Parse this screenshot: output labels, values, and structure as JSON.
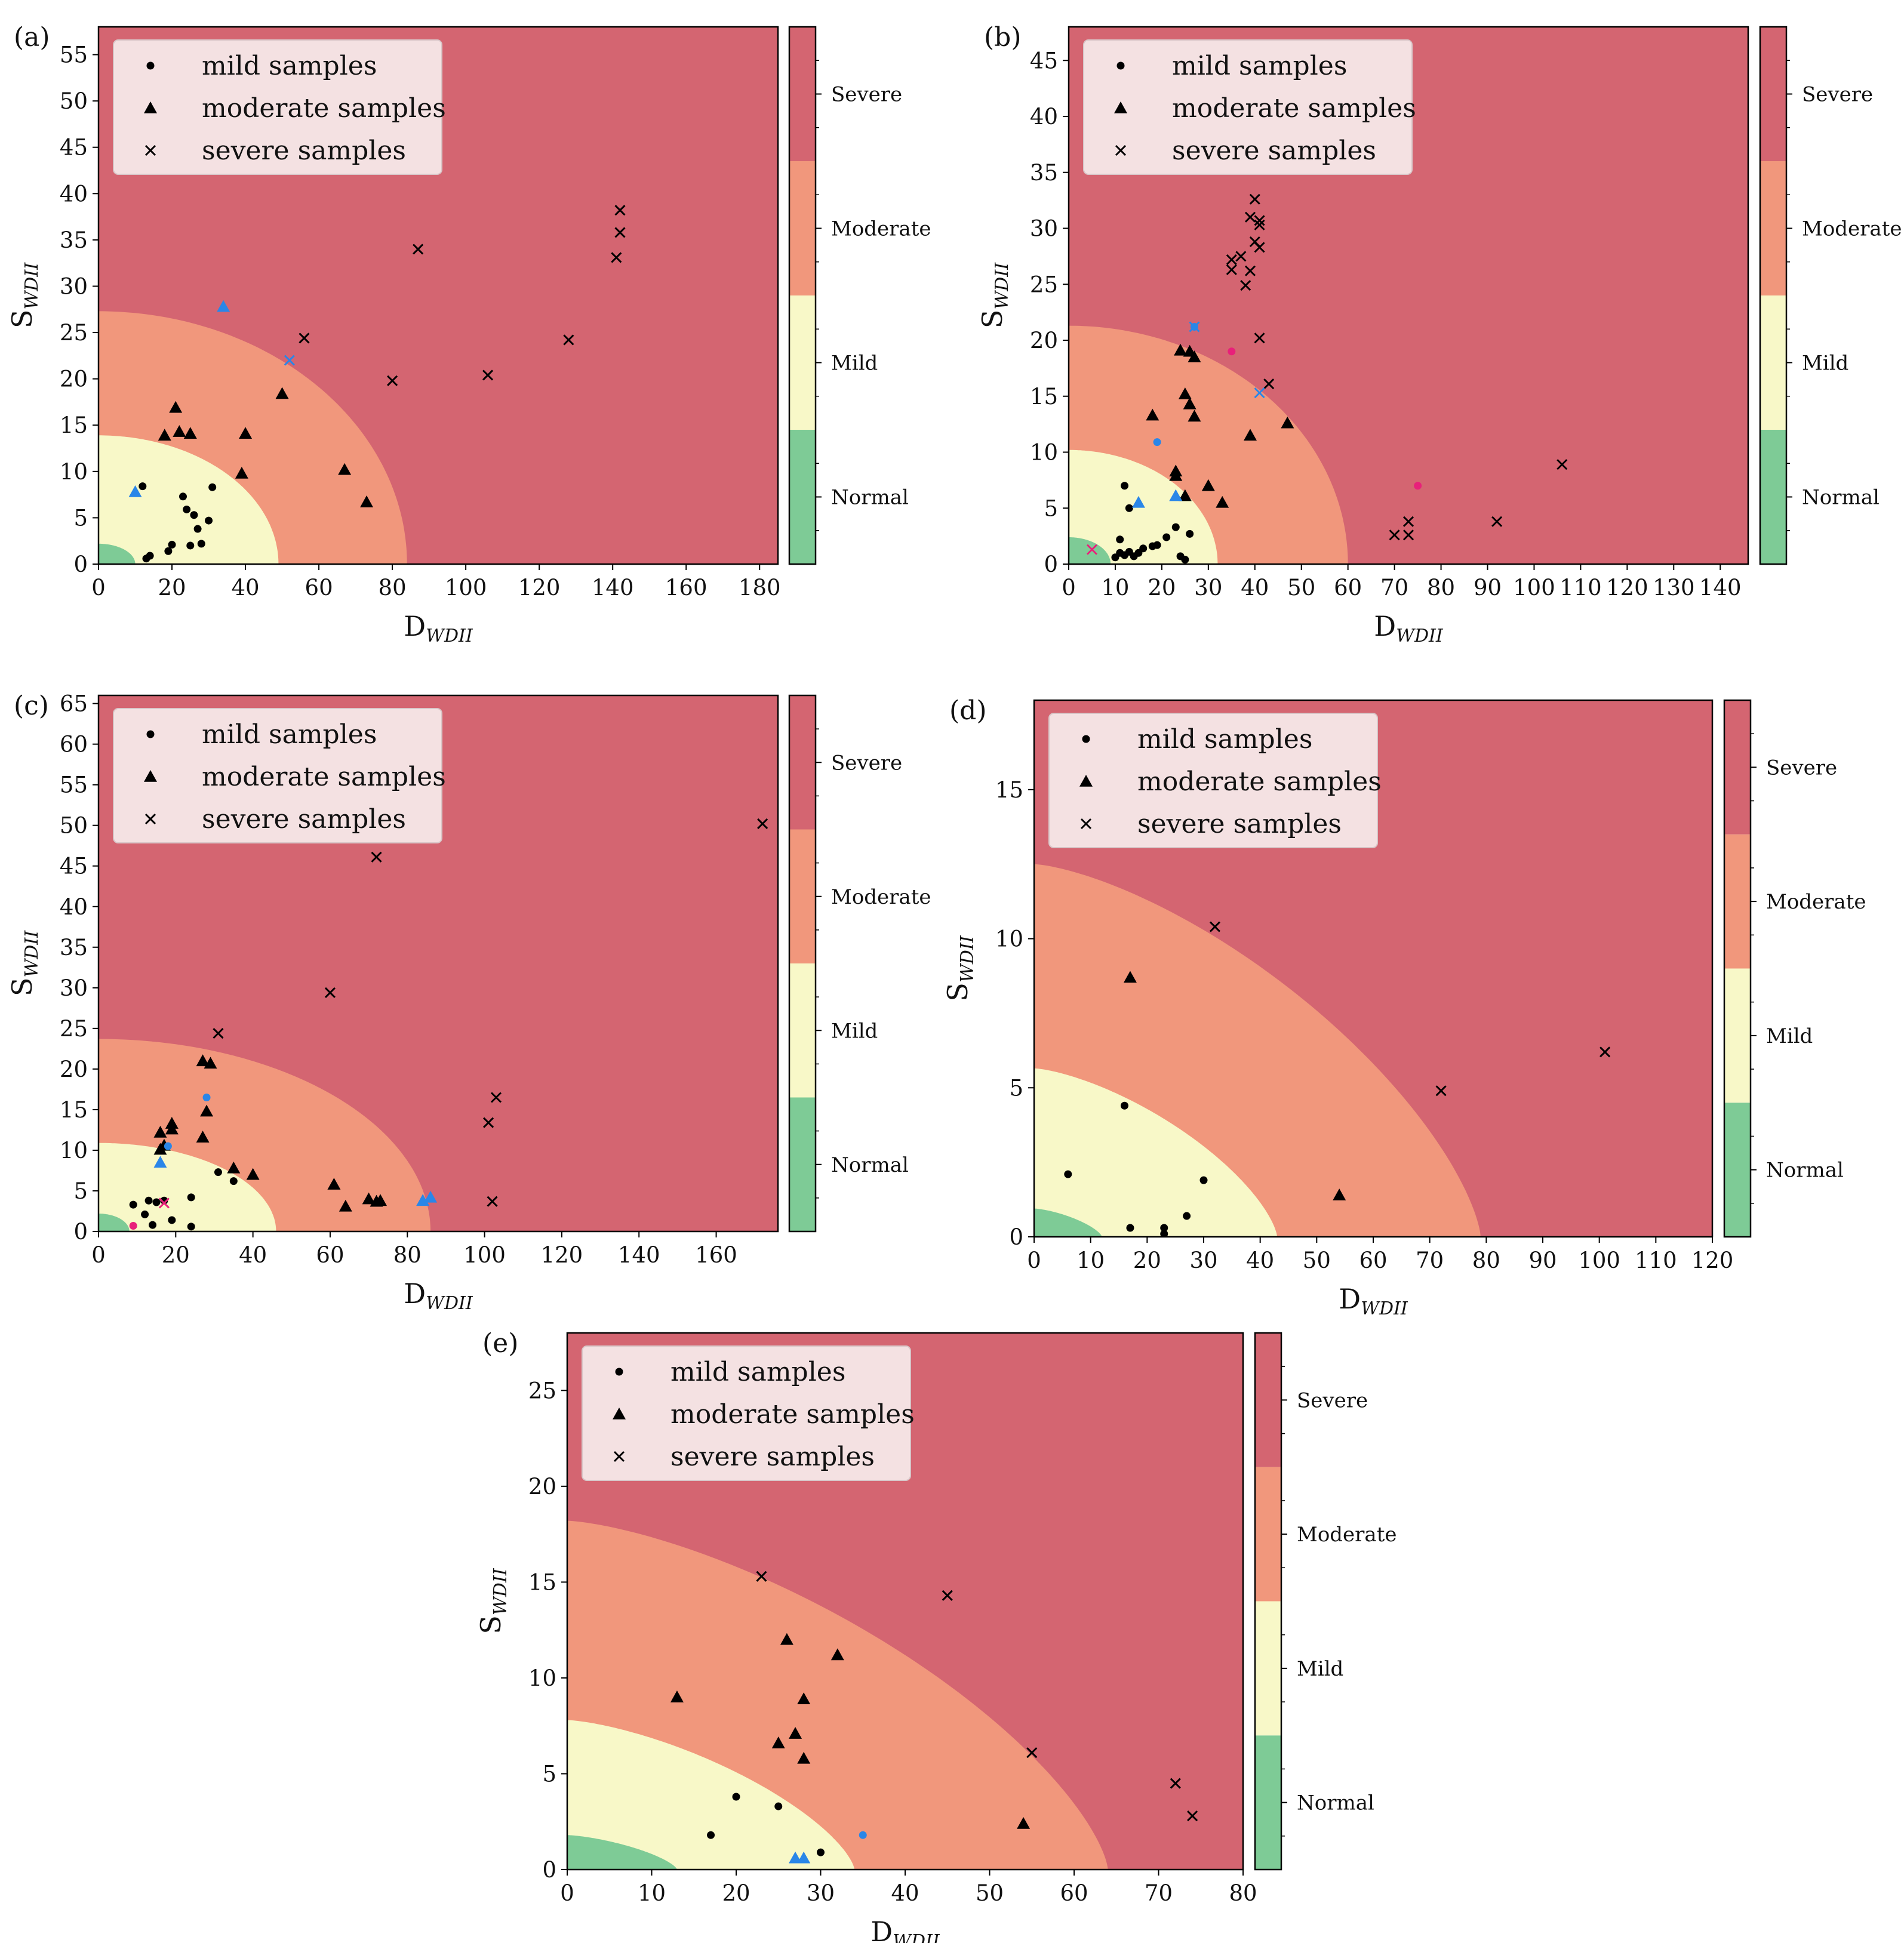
{
  "legend": {
    "mild": "mild samples",
    "moderate": "moderate samples",
    "severe": "severe samples"
  },
  "colorbar_labels": [
    "Normal",
    "Mild",
    "Moderate",
    "Severe"
  ],
  "colors": {
    "normal": "#7ecb96",
    "mild": "#f8f8c8",
    "moderate": "#f1977c",
    "severe": "#d46571",
    "marker": "#000000",
    "highlight_blue": "#2a86e8",
    "highlight_pink": "#e8207a"
  },
  "chart_data": [
    {
      "panel": "(a)",
      "type": "scatter",
      "xlabel": "D",
      "xlabel_sub": "WDII",
      "ylabel": "S",
      "ylabel_sub": "WDII",
      "xlim": [
        0,
        185
      ],
      "ylim": [
        0,
        58
      ],
      "xticks": [
        0,
        20,
        40,
        60,
        80,
        100,
        120,
        140,
        160,
        180
      ],
      "yticks": [
        0,
        5,
        10,
        15,
        20,
        25,
        30,
        35,
        40,
        45,
        50,
        55
      ],
      "regions": {
        "normal_r": [
          10,
          2.2
        ],
        "mild_r": [
          49,
          13.9
        ],
        "moderate_r": [
          84,
          27.3
        ],
        "shape": "ellipse"
      },
      "mild": [
        [
          12,
          8.4
        ],
        [
          13,
          0.6
        ],
        [
          14,
          0.9
        ],
        [
          19,
          1.4
        ],
        [
          20,
          2.1
        ],
        [
          23,
          7.3
        ],
        [
          24,
          5.9
        ],
        [
          25,
          2.0
        ],
        [
          26,
          5.3
        ],
        [
          27,
          3.8
        ],
        [
          28,
          2.2
        ],
        [
          30,
          4.7
        ],
        [
          31,
          8.3
        ]
      ],
      "moderate": [
        [
          18,
          13.9
        ],
        [
          21,
          16.9
        ],
        [
          22,
          14.3
        ],
        [
          25,
          14.1
        ],
        [
          39,
          9.8
        ],
        [
          40,
          14.1
        ],
        [
          50,
          18.4
        ],
        [
          67,
          10.2
        ],
        [
          73,
          6.7
        ]
      ],
      "severe": [
        [
          56,
          24.4
        ],
        [
          80,
          19.8
        ],
        [
          87,
          34.0
        ],
        [
          106,
          20.4
        ],
        [
          128,
          24.2
        ],
        [
          141,
          33.1
        ],
        [
          142,
          35.8
        ],
        [
          142,
          38.2
        ]
      ],
      "highlight": [
        {
          "marker": "triangle",
          "color": "blue",
          "x": 10,
          "y": 7.8
        },
        {
          "marker": "triangle",
          "color": "blue",
          "x": 34,
          "y": 27.8
        },
        {
          "marker": "x",
          "color": "blue",
          "x": 52,
          "y": 22.0
        }
      ]
    },
    {
      "panel": "(b)",
      "type": "scatter",
      "xlabel": "D",
      "xlabel_sub": "WDII",
      "ylabel": "S",
      "ylabel_sub": "WDII",
      "xlim": [
        0,
        146
      ],
      "ylim": [
        0,
        48
      ],
      "xticks": [
        0,
        10,
        20,
        30,
        40,
        50,
        60,
        70,
        80,
        90,
        100,
        110,
        120,
        130,
        140
      ],
      "yticks": [
        0,
        5,
        10,
        15,
        20,
        25,
        30,
        35,
        40,
        45
      ],
      "regions": {
        "normal_r": [
          9,
          2.4
        ],
        "mild_r": [
          32,
          10.2
        ],
        "moderate_r": [
          60,
          21.3
        ],
        "shape": "ellipse"
      },
      "mild": [
        [
          10,
          0.6
        ],
        [
          11,
          2.2
        ],
        [
          11,
          1.0
        ],
        [
          12,
          0.8
        ],
        [
          12,
          7.0
        ],
        [
          13,
          5.0
        ],
        [
          13,
          1.1
        ],
        [
          14,
          0.7
        ],
        [
          15,
          1.0
        ],
        [
          16,
          1.4
        ],
        [
          18,
          1.6
        ],
        [
          19,
          1.7
        ],
        [
          21,
          2.4
        ],
        [
          23,
          3.3
        ],
        [
          24,
          0.7
        ],
        [
          25,
          0.4
        ],
        [
          26,
          2.7
        ]
      ],
      "moderate": [
        [
          18,
          13.3
        ],
        [
          23,
          7.9
        ],
        [
          23,
          8.3
        ],
        [
          24,
          19.1
        ],
        [
          25,
          15.2
        ],
        [
          25,
          6.1
        ],
        [
          26,
          19.0
        ],
        [
          26,
          14.3
        ],
        [
          27,
          13.2
        ],
        [
          27,
          18.5
        ],
        [
          30,
          7.0
        ],
        [
          33,
          5.5
        ],
        [
          39,
          11.5
        ],
        [
          47,
          12.6
        ]
      ],
      "severe": [
        [
          35,
          27.2
        ],
        [
          35,
          26.3
        ],
        [
          37,
          27.5
        ],
        [
          38,
          24.9
        ],
        [
          39,
          31.0
        ],
        [
          39,
          26.2
        ],
        [
          40,
          32.6
        ],
        [
          40,
          28.8
        ],
        [
          41,
          28.3
        ],
        [
          41,
          30.7
        ],
        [
          41,
          30.3
        ],
        [
          41,
          20.2
        ],
        [
          43,
          16.1
        ],
        [
          70,
          2.6
        ],
        [
          73,
          3.8
        ],
        [
          73,
          2.6
        ],
        [
          92,
          3.8
        ],
        [
          106,
          8.9
        ]
      ],
      "highlight": [
        {
          "marker": "dot",
          "color": "blue",
          "x": 19,
          "y": 10.9
        },
        {
          "marker": "triangle",
          "color": "blue",
          "x": 15,
          "y": 5.5
        },
        {
          "marker": "triangle",
          "color": "blue",
          "x": 23,
          "y": 6.1
        },
        {
          "marker": "x",
          "color": "blue",
          "x": 27,
          "y": 21.2
        },
        {
          "marker": "dot",
          "color": "blue",
          "x": 27,
          "y": 21.2
        },
        {
          "marker": "x",
          "color": "blue",
          "x": 41,
          "y": 15.3
        },
        {
          "marker": "x",
          "color": "pink",
          "x": 5,
          "y": 1.3
        },
        {
          "marker": "dot",
          "color": "pink",
          "x": 35,
          "y": 19.0
        },
        {
          "marker": "dot",
          "color": "pink",
          "x": 75,
          "y": 7.0
        }
      ]
    },
    {
      "panel": "(c)",
      "type": "scatter",
      "xlabel": "D",
      "xlabel_sub": "WDII",
      "ylabel": "S",
      "ylabel_sub": "WDII",
      "xlim": [
        0,
        176
      ],
      "ylim": [
        0,
        66
      ],
      "xticks": [
        0,
        20,
        40,
        60,
        80,
        100,
        120,
        140,
        160
      ],
      "yticks": [
        0,
        5,
        10,
        15,
        20,
        25,
        30,
        35,
        40,
        45,
        50,
        55,
        60,
        65
      ],
      "regions": {
        "normal_r": [
          8,
          2.2
        ],
        "mild_r": [
          46,
          10.9
        ],
        "moderate_r": [
          86,
          23.7
        ],
        "shape": "ellipse"
      },
      "mild": [
        [
          9,
          3.3
        ],
        [
          12,
          2.1
        ],
        [
          13,
          3.8
        ],
        [
          14,
          0.8
        ],
        [
          15,
          3.6
        ],
        [
          17,
          3.8
        ],
        [
          19,
          1.4
        ],
        [
          24,
          4.2
        ],
        [
          24,
          0.6
        ],
        [
          31,
          7.3
        ],
        [
          35,
          6.2
        ]
      ],
      "moderate": [
        [
          16,
          10.1
        ],
        [
          16,
          12.2
        ],
        [
          17,
          10.6
        ],
        [
          19,
          12.6
        ],
        [
          19,
          13.3
        ],
        [
          27,
          11.6
        ],
        [
          27,
          21.0
        ],
        [
          28,
          14.8
        ],
        [
          29,
          20.7
        ],
        [
          35,
          7.8
        ],
        [
          40,
          7.0
        ],
        [
          61,
          5.8
        ],
        [
          64,
          3.1
        ],
        [
          70,
          4.0
        ],
        [
          72,
          3.7
        ],
        [
          73,
          3.8
        ]
      ],
      "severe": [
        [
          31,
          24.4
        ],
        [
          60,
          29.4
        ],
        [
          72,
          46.1
        ],
        [
          101,
          13.4
        ],
        [
          102,
          3.7
        ],
        [
          103,
          16.5
        ],
        [
          172,
          50.2
        ]
      ],
      "highlight": [
        {
          "marker": "triangle",
          "color": "blue",
          "x": 16,
          "y": 8.5
        },
        {
          "marker": "dot",
          "color": "blue",
          "x": 18,
          "y": 10.5
        },
        {
          "marker": "dot",
          "color": "blue",
          "x": 28,
          "y": 16.5
        },
        {
          "marker": "triangle",
          "color": "blue",
          "x": 84,
          "y": 3.8
        },
        {
          "marker": "triangle",
          "color": "blue",
          "x": 86,
          "y": 4.2
        },
        {
          "marker": "x",
          "color": "pink",
          "x": 17,
          "y": 3.5
        },
        {
          "marker": "dot",
          "color": "pink",
          "x": 9,
          "y": 0.7
        }
      ]
    },
    {
      "panel": "(d)",
      "type": "scatter",
      "xlabel": "D",
      "xlabel_sub": "WDII",
      "ylabel": "S",
      "ylabel_sub": "WDII",
      "xlim": [
        0,
        120
      ],
      "ylim": [
        0,
        18
      ],
      "xticks": [
        0,
        10,
        20,
        30,
        40,
        50,
        60,
        70,
        80,
        90,
        100,
        110,
        120
      ],
      "yticks": [
        0,
        5,
        10,
        15
      ],
      "regions": {
        "normal_r": [
          12,
          0.95
        ],
        "mild_r": [
          43,
          5.65
        ],
        "moderate_r": [
          79,
          12.5
        ],
        "shape": "superellipse"
      },
      "mild": [
        [
          6,
          2.1
        ],
        [
          16,
          4.4
        ],
        [
          17,
          0.3
        ],
        [
          23,
          0.3
        ],
        [
          23,
          0.1
        ],
        [
          27,
          0.7
        ],
        [
          30,
          1.9
        ]
      ],
      "moderate": [
        [
          17,
          8.7
        ],
        [
          54,
          1.4
        ]
      ],
      "severe": [
        [
          32,
          10.4
        ],
        [
          72,
          4.9
        ],
        [
          101,
          6.2
        ]
      ],
      "highlight": []
    },
    {
      "panel": "(e)",
      "type": "scatter",
      "xlabel": "D",
      "xlabel_sub": "WDII",
      "ylabel": "S",
      "ylabel_sub": "WDII",
      "xlim": [
        0,
        80
      ],
      "ylim": [
        0,
        28
      ],
      "xticks": [
        0,
        10,
        20,
        30,
        40,
        50,
        60,
        70,
        80
      ],
      "yticks": [
        0,
        5,
        10,
        15,
        20,
        25
      ],
      "regions": {
        "normal_r": [
          13,
          1.8
        ],
        "mild_r": [
          34,
          7.8
        ],
        "moderate_r": [
          64,
          18.2
        ],
        "shape": "superellipse"
      },
      "mild": [
        [
          17,
          1.8
        ],
        [
          20,
          3.8
        ],
        [
          25,
          3.3
        ],
        [
          30,
          0.9
        ]
      ],
      "moderate": [
        [
          13,
          9.0
        ],
        [
          25,
          6.6
        ],
        [
          26,
          12.0
        ],
        [
          27,
          7.1
        ],
        [
          28,
          8.9
        ],
        [
          28,
          5.8
        ],
        [
          32,
          11.2
        ],
        [
          54,
          2.4
        ]
      ],
      "severe": [
        [
          23,
          15.3
        ],
        [
          45,
          14.3
        ],
        [
          55,
          6.1
        ],
        [
          72,
          4.5
        ],
        [
          74,
          2.8
        ]
      ],
      "highlight": [
        {
          "marker": "triangle",
          "color": "blue",
          "x": 27,
          "y": 0.6
        },
        {
          "marker": "triangle",
          "color": "blue",
          "x": 28,
          "y": 0.6
        },
        {
          "marker": "dot",
          "color": "blue",
          "x": 35,
          "y": 1.8
        }
      ]
    }
  ]
}
